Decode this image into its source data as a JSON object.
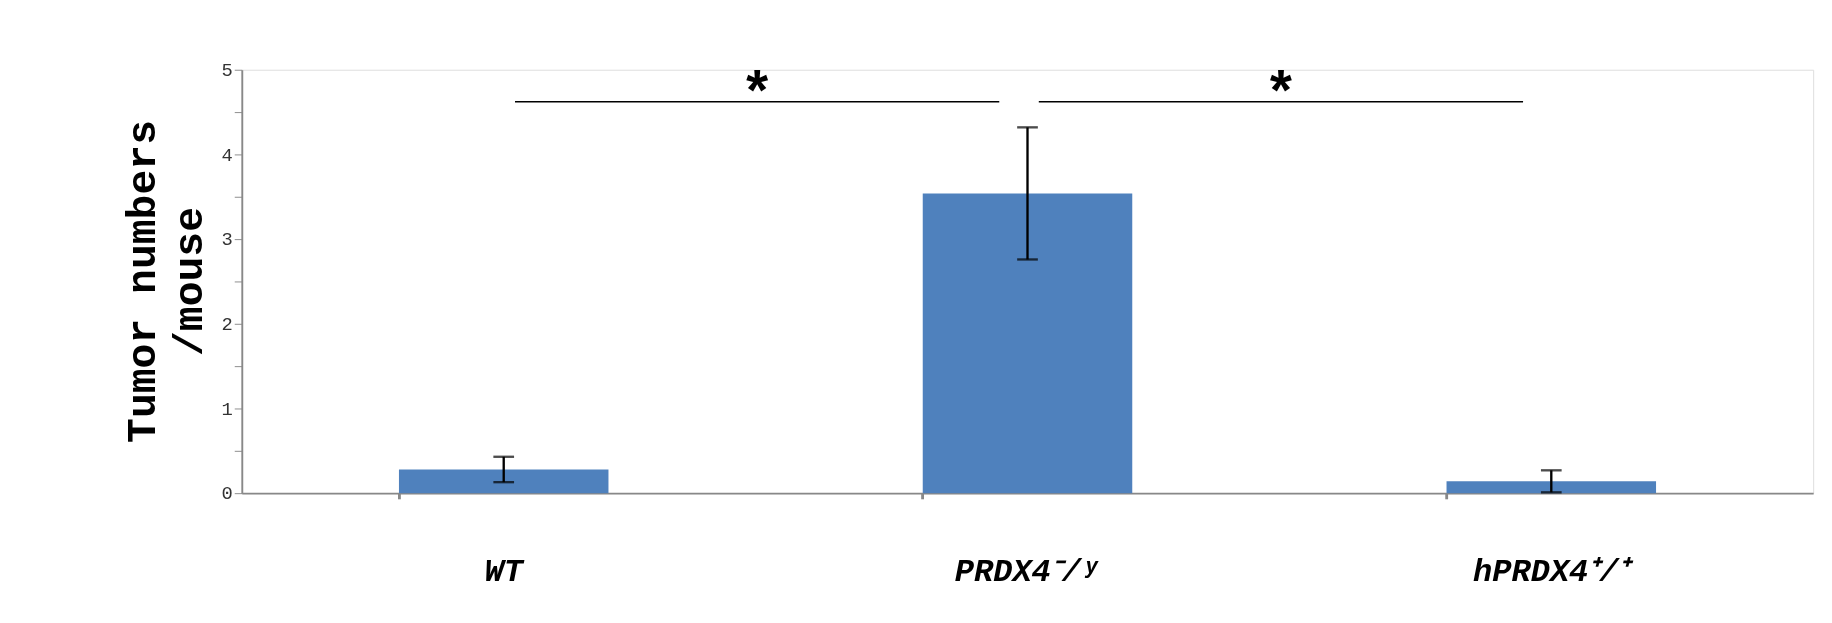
{
  "chart_data": {
    "type": "bar",
    "ylabel": "Tumor numbers /mouse",
    "categories": [
      "WT",
      "PRDX4⁻/ʸ",
      "hPRDX4⁺/⁺"
    ],
    "values": [
      0.28,
      3.54,
      0.14
    ],
    "errors": [
      0.15,
      0.78,
      0.13
    ],
    "color": "#4f81bd",
    "ylim": [
      0,
      5
    ],
    "yticks": [
      0,
      {
        "value": 0.5,
        "label": null
      },
      1,
      {
        "value": 1.5,
        "label": null
      },
      2,
      {
        "value": 2.5,
        "label": null
      },
      3,
      {
        "value": 3.5,
        "label": null
      },
      4,
      {
        "value": 4.5,
        "label": null
      },
      5
    ],
    "grid": false,
    "annotations": [
      "*",
      "*"
    ]
  }
}
